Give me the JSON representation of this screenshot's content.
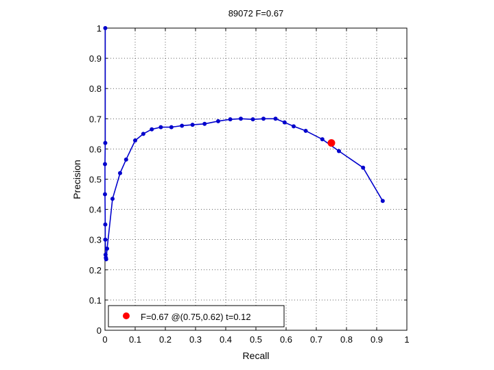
{
  "chart_data": {
    "type": "line",
    "title": "89072 F=0.67",
    "xlabel": "Recall",
    "ylabel": "Precision",
    "xlim": [
      0,
      1
    ],
    "ylim": [
      0,
      1
    ],
    "grid": true,
    "legend_position": "bottom-left",
    "x_ticks": [
      "0",
      "0.1",
      "0.2",
      "0.3",
      "0.4",
      "0.5",
      "0.6",
      "0.7",
      "0.8",
      "0.9",
      "1"
    ],
    "y_ticks": [
      "0",
      "0.1",
      "0.2",
      "0.3",
      "0.4",
      "0.5",
      "0.6",
      "0.7",
      "0.8",
      "0.9",
      "1"
    ],
    "series": [
      {
        "color": "#0000cc",
        "x": [
          0.001,
          0.001,
          0.0,
          0.0,
          0.001,
          0.001,
          0.002,
          0.003,
          0.004,
          0.007,
          0.025,
          0.05,
          0.07,
          0.1,
          0.127,
          0.155,
          0.185,
          0.22,
          0.255,
          0.29,
          0.33,
          0.375,
          0.415,
          0.45,
          0.49,
          0.525,
          0.565,
          0.595,
          0.625,
          0.665,
          0.72,
          0.775,
          0.855,
          0.92
        ],
        "y": [
          1.0,
          0.62,
          0.55,
          0.45,
          0.35,
          0.3,
          0.25,
          0.24,
          0.235,
          0.27,
          0.435,
          0.52,
          0.565,
          0.628,
          0.65,
          0.665,
          0.672,
          0.672,
          0.677,
          0.68,
          0.683,
          0.692,
          0.698,
          0.7,
          0.698,
          0.7,
          0.7,
          0.688,
          0.675,
          0.66,
          0.632,
          0.593,
          0.538,
          0.428
        ]
      }
    ],
    "best_point": {
      "x": 0.75,
      "y": 0.62,
      "color": "#ff0000"
    },
    "legend_label": "F=0.67 @(0.75,0.62) t=0.12"
  }
}
